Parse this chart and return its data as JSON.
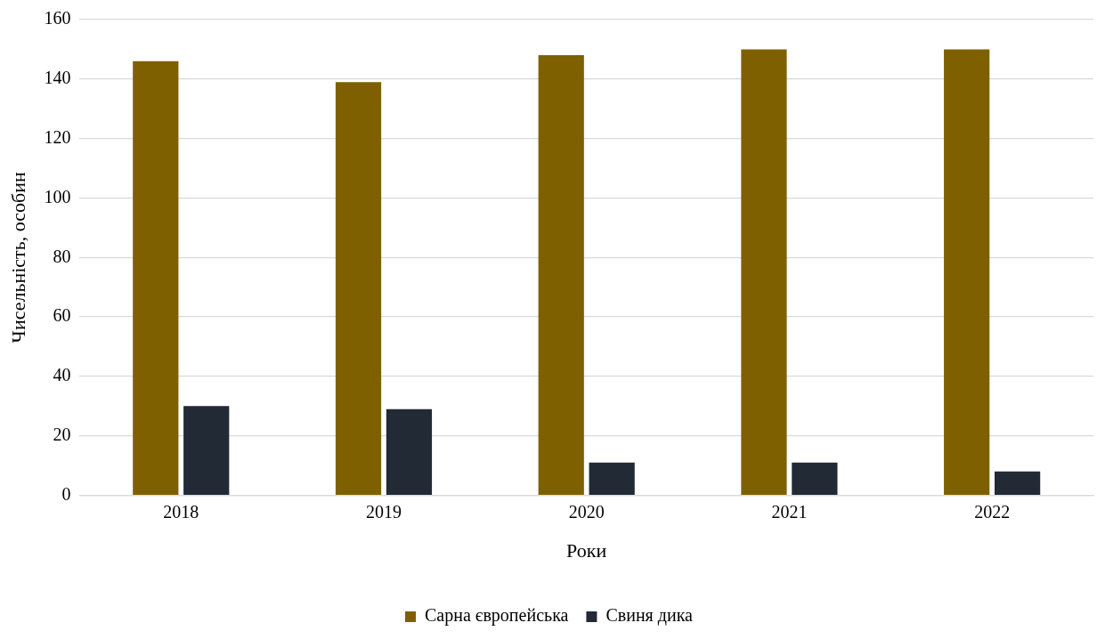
{
  "chart_data": {
    "type": "bar",
    "xlabel": "Роки",
    "ylabel": "Чисельність, особин",
    "categories": [
      "2018",
      "2019",
      "2020",
      "2021",
      "2022"
    ],
    "series": [
      {
        "name": "Сарна європейська",
        "color": "#7f6000",
        "values": [
          146,
          139,
          148,
          150,
          150
        ]
      },
      {
        "name": "Свиня дика",
        "color": "#222a35",
        "values": [
          30,
          29,
          11,
          11,
          8
        ]
      }
    ],
    "ylim": [
      0,
      160
    ],
    "yticks": [
      0,
      20,
      40,
      60,
      80,
      100,
      120,
      140,
      160
    ],
    "grid": "y",
    "legend": "bottom"
  }
}
